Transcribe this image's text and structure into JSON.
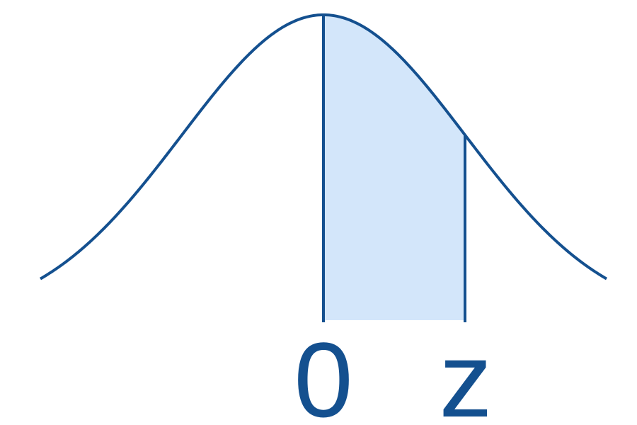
{
  "chart_data": {
    "type": "area",
    "title": "",
    "xlabel": "",
    "ylabel": "",
    "distribution": "standard normal",
    "curve_function": "normal_pdf",
    "mean": 0,
    "sd": 1,
    "xlim": [
      -2.0,
      2.0
    ],
    "ylim": [
      0,
      0.3989
    ],
    "shaded_region": {
      "from": 0,
      "to": 1.0
    },
    "x_tick_labels": [
      {
        "label": "0",
        "x": 0
      },
      {
        "label": "z",
        "x": 1.0
      }
    ],
    "grid": false,
    "legend": "none"
  },
  "colors": {
    "curve": "#14508f",
    "fill": "#d3e6fa",
    "text": "#14508f",
    "background": "#ffffff"
  }
}
